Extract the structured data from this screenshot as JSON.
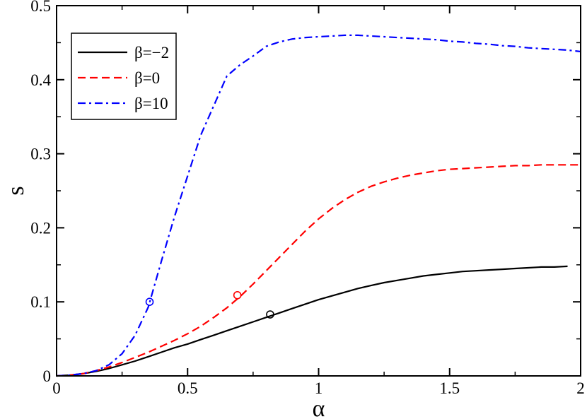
{
  "chart_data": {
    "type": "line",
    "title": "",
    "xlabel": "α",
    "ylabel": "s",
    "xlim": [
      0,
      2
    ],
    "ylim": [
      0,
      0.5
    ],
    "xticks": [
      0,
      0.5,
      1,
      1.5,
      2
    ],
    "xtick_labels": [
      "0",
      "0.5",
      "1",
      "1.5",
      "2"
    ],
    "yticks": [
      0,
      0.1,
      0.2,
      0.3,
      0.4,
      0.5
    ],
    "ytick_labels": [
      "0",
      "0.1",
      "0.2",
      "0.3",
      "0.4",
      "0.5"
    ],
    "grid": false,
    "legend_position": "top-left",
    "series": [
      {
        "name": "β=−2",
        "color": "#000000",
        "style": "solid",
        "x": [
          0,
          0.05,
          0.1,
          0.15,
          0.2,
          0.25,
          0.3,
          0.35,
          0.4,
          0.45,
          0.5,
          0.55,
          0.6,
          0.65,
          0.7,
          0.75,
          0.8,
          0.85,
          0.9,
          0.95,
          1.0,
          1.05,
          1.1,
          1.15,
          1.2,
          1.25,
          1.3,
          1.35,
          1.4,
          1.45,
          1.5,
          1.55,
          1.6,
          1.65,
          1.7,
          1.75,
          1.8,
          1.85,
          1.9,
          1.95
        ],
        "y": [
          0,
          0.001,
          0.003,
          0.006,
          0.01,
          0.015,
          0.02,
          0.026,
          0.032,
          0.038,
          0.043,
          0.049,
          0.055,
          0.061,
          0.067,
          0.073,
          0.079,
          0.085,
          0.091,
          0.097,
          0.103,
          0.108,
          0.113,
          0.118,
          0.122,
          0.126,
          0.129,
          0.132,
          0.135,
          0.137,
          0.139,
          0.141,
          0.142,
          0.143,
          0.144,
          0.145,
          0.146,
          0.147,
          0.147,
          0.148
        ]
      },
      {
        "name": "β=0",
        "color": "#ff0000",
        "style": "dashed",
        "x": [
          0,
          0.05,
          0.1,
          0.15,
          0.2,
          0.25,
          0.3,
          0.35,
          0.4,
          0.45,
          0.5,
          0.55,
          0.6,
          0.65,
          0.7,
          0.75,
          0.8,
          0.85,
          0.9,
          0.95,
          1.0,
          1.05,
          1.1,
          1.15,
          1.2,
          1.25,
          1.3,
          1.35,
          1.4,
          1.45,
          1.5,
          1.55,
          1.6,
          1.65,
          1.7,
          1.75,
          1.8,
          1.85,
          1.9,
          1.95,
          2.0
        ],
        "y": [
          0,
          0.001,
          0.003,
          0.007,
          0.012,
          0.018,
          0.025,
          0.032,
          0.04,
          0.048,
          0.057,
          0.067,
          0.079,
          0.092,
          0.107,
          0.124,
          0.142,
          0.16,
          0.178,
          0.196,
          0.212,
          0.226,
          0.238,
          0.248,
          0.256,
          0.262,
          0.267,
          0.271,
          0.274,
          0.277,
          0.279,
          0.28,
          0.281,
          0.282,
          0.283,
          0.284,
          0.284,
          0.285,
          0.285,
          0.285,
          0.285
        ]
      },
      {
        "name": "β=10",
        "color": "#0000ff",
        "style": "dashdot",
        "x": [
          0,
          0.05,
          0.1,
          0.15,
          0.2,
          0.25,
          0.3,
          0.35,
          0.4,
          0.45,
          0.5,
          0.55,
          0.6,
          0.65,
          0.7,
          0.75,
          0.8,
          0.85,
          0.9,
          0.95,
          1.0,
          1.05,
          1.1,
          1.15,
          1.2,
          1.25,
          1.3,
          1.35,
          1.4,
          1.45,
          1.5,
          1.55,
          1.6,
          1.65,
          1.7,
          1.75,
          1.8,
          1.85,
          1.9,
          1.95,
          2.0
        ],
        "y": [
          0,
          0.001,
          0.003,
          0.007,
          0.015,
          0.03,
          0.055,
          0.093,
          0.155,
          0.215,
          0.27,
          0.325,
          0.365,
          0.405,
          0.42,
          0.432,
          0.445,
          0.451,
          0.455,
          0.457,
          0.458,
          0.459,
          0.46,
          0.46,
          0.459,
          0.458,
          0.457,
          0.456,
          0.455,
          0.454,
          0.452,
          0.451,
          0.449,
          0.448,
          0.446,
          0.445,
          0.443,
          0.442,
          0.441,
          0.44,
          0.438
        ]
      }
    ],
    "markers": [
      {
        "x": 0.815,
        "y": 0.083,
        "color": "#000000"
      },
      {
        "x": 0.69,
        "y": 0.109,
        "color": "#ff0000"
      },
      {
        "x": 0.355,
        "y": 0.1,
        "color": "#0000ff"
      }
    ]
  }
}
